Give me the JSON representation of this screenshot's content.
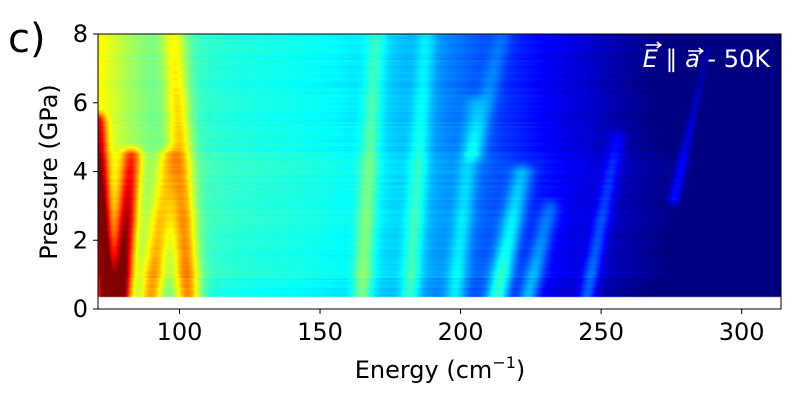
{
  "chart_data": {
    "type": "heatmap",
    "panel_label": "c)",
    "annotation": {
      "E_vec": "E",
      "parallel": "∥",
      "a_vec": "a",
      "rest": " - 50K",
      "position": "top-right"
    },
    "xlabel": {
      "text": "Energy (cm",
      "superscript": "−1",
      "suffix": ")"
    },
    "ylabel": "Pressure (GPa)",
    "xlim": [
      71,
      314
    ],
    "ylim": [
      0,
      8
    ],
    "xticks": [
      100,
      150,
      200,
      250,
      300
    ],
    "yticks": [
      0,
      2,
      4,
      6,
      8
    ],
    "data_y_range": [
      0.35,
      8
    ],
    "colormap": "jet",
    "intensity_range": [
      0,
      1
    ],
    "pressure_bands": [
      0.35,
      0.9,
      1.45,
      2.4,
      4.6,
      8
    ],
    "features": [
      {
        "name": "low-energy mode",
        "e0": 74,
        "p0": 0.35,
        "e1": 71,
        "p1": 5.5,
        "amp": 0.55,
        "width": 2.8
      },
      {
        "name": "strong mode near 80",
        "e0": 79,
        "p0": 0.35,
        "e1": 83,
        "p1": 4.5,
        "amp": 0.55,
        "width": 3.5
      },
      {
        "name": "mode near 100",
        "e0": 103,
        "p0": 0.35,
        "e1": 98,
        "p1": 8,
        "amp": 0.32,
        "width": 4.5
      },
      {
        "name": "mode near 92",
        "e0": 90,
        "p0": 0.35,
        "e1": 96,
        "p1": 4.5,
        "amp": 0.25,
        "width": 4
      },
      {
        "name": "mode near 165",
        "e0": 165,
        "p0": 0.35,
        "e1": 170,
        "p1": 8,
        "amp": 0.16,
        "width": 3.5
      },
      {
        "name": "mode near 182",
        "e0": 182,
        "p0": 0.35,
        "e1": 188,
        "p1": 8,
        "amp": 0.14,
        "width": 3.5
      },
      {
        "name": "mode near 200",
        "e0": 198,
        "p0": 0.35,
        "e1": 205,
        "p1": 6,
        "amp": 0.13,
        "width": 3.5
      },
      {
        "name": "mode near 215",
        "e0": 213,
        "p0": 0.35,
        "e1": 222,
        "p1": 4,
        "amp": 0.26,
        "width": 4
      },
      {
        "name": "mode near 228",
        "e0": 224,
        "p0": 0.35,
        "e1": 232,
        "p1": 3,
        "amp": 0.18,
        "width": 3.5
      },
      {
        "name": "mode near 245",
        "e0": 245,
        "p0": 0.35,
        "e1": 256,
        "p1": 5,
        "amp": 0.16,
        "width": 3
      },
      {
        "name": "weak mode near 280",
        "e0": 276,
        "p0": 3.2,
        "e1": 288,
        "p1": 7.5,
        "amp": 0.13,
        "width": 2.2
      },
      {
        "name": "mode near 210 high pressure",
        "e0": 205,
        "p0": 4.5,
        "e1": 215,
        "p1": 8,
        "amp": 0.1,
        "width": 3.5
      }
    ]
  }
}
